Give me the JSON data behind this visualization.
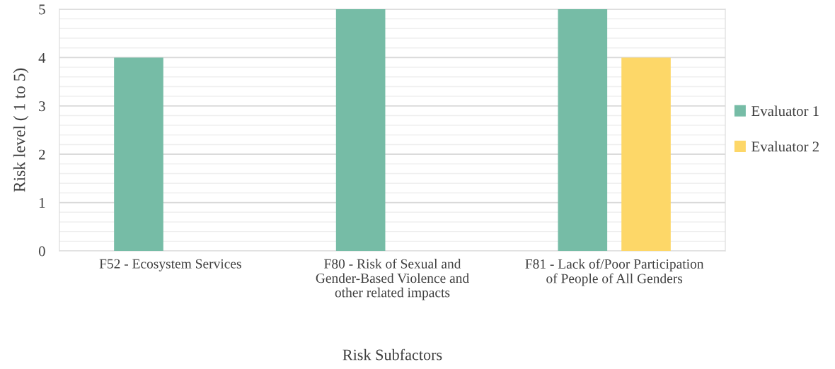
{
  "chart_data": {
    "type": "bar",
    "xlabel": "Risk Subfactors",
    "ylabel": "Risk level ( 1 to 5)",
    "categories": [
      "F52 - Ecosystem Services",
      "F80 - Risk of Sexual and\nGender-Based Violence and\nother related impacts",
      "F81 - Lack of/Poor Participation\nof People of All Genders"
    ],
    "series": [
      {
        "name": "Evaluator 1",
        "color": "#76bca6",
        "values": [
          4,
          5,
          5
        ]
      },
      {
        "name": "Evaluator 2",
        "color": "#fdd768",
        "values": [
          null,
          null,
          4
        ]
      }
    ],
    "ylim": [
      0,
      5
    ],
    "yticks": [
      0,
      1,
      2,
      3,
      4,
      5
    ],
    "grid": "y",
    "legend": "right"
  }
}
